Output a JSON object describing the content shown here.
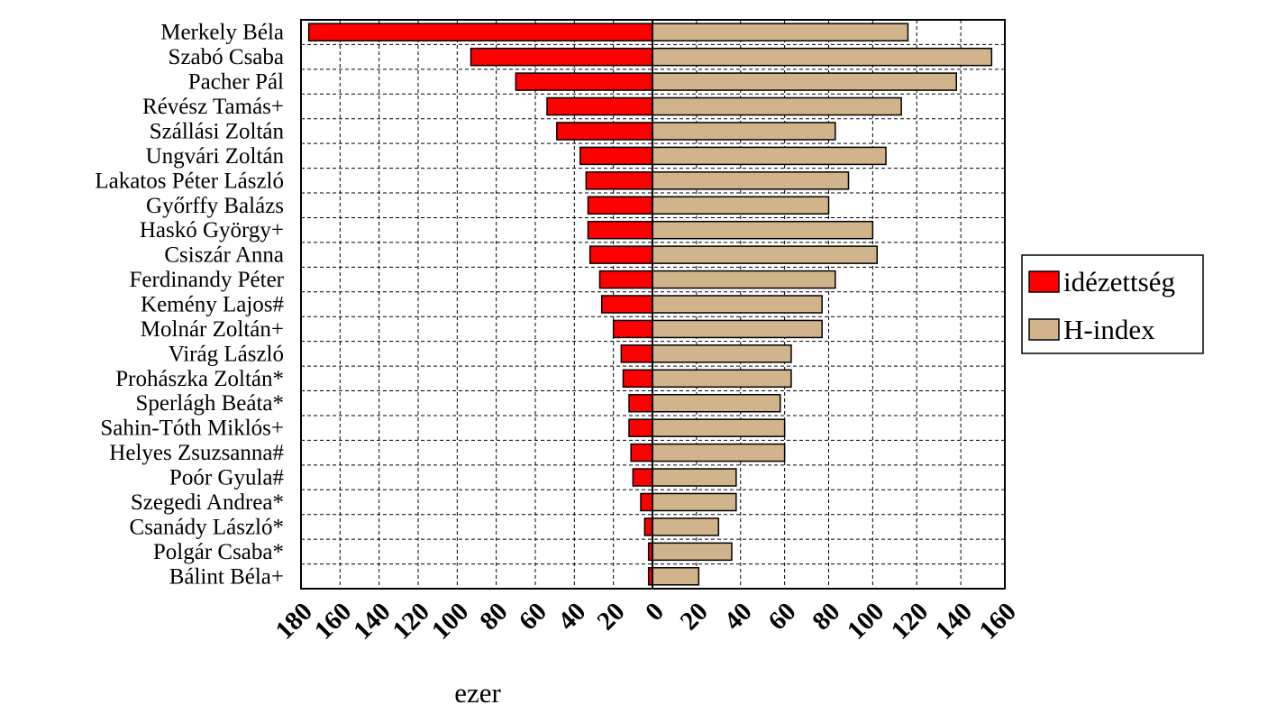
{
  "chart_data": {
    "type": "bar",
    "orientation": "horizontal",
    "layout": "diverging",
    "xlabel": "ezer",
    "categories": [
      "Merkely Béla",
      "Szabó Csaba",
      "Pacher Pál",
      "Révész Tamás+",
      "Szállási Zoltán",
      "Ungvári Zoltán",
      "Lakatos Péter László",
      "Győrffy Balázs",
      "Haskó György+",
      "Csiszár Anna",
      "Ferdinandy Péter",
      "Kemény Lajos#",
      "Molnár Zoltán+",
      "Virág László",
      "Prohászka Zoltán*",
      "Sperlágh Beáta*",
      "Sahin-Tóth Miklós+",
      "Helyes Zsuzsanna#",
      "Poór Gyula#",
      "Szegedi Andrea*",
      "Csanády László*",
      "Polgár Csaba*",
      "Bálint Béla+"
    ],
    "series": [
      {
        "name": "idézettség",
        "side": "left",
        "color": "#ff0000",
        "values": [
          176,
          93,
          70,
          54,
          49,
          37,
          34,
          33,
          33,
          32,
          27,
          26,
          20,
          16,
          15,
          12,
          12,
          11,
          10,
          6,
          4,
          2,
          2
        ]
      },
      {
        "name": "H-index",
        "side": "right",
        "color": "#d2b48c",
        "values": [
          116,
          154,
          138,
          113,
          83,
          106,
          89,
          80,
          100,
          102,
          83,
          77,
          77,
          63,
          63,
          58,
          60,
          60,
          38,
          38,
          30,
          36,
          21
        ]
      }
    ],
    "x_left_range": [
      0,
      180
    ],
    "x_right_range": [
      0,
      160
    ],
    "x_left_ticks": [
      "180",
      "160",
      "140",
      "120",
      "100",
      "80",
      "60",
      "40",
      "20",
      "0"
    ],
    "x_right_ticks": [
      "20",
      "40",
      "60",
      "80",
      "100",
      "120",
      "140",
      "160"
    ],
    "grid": true,
    "legend_position": "right"
  }
}
